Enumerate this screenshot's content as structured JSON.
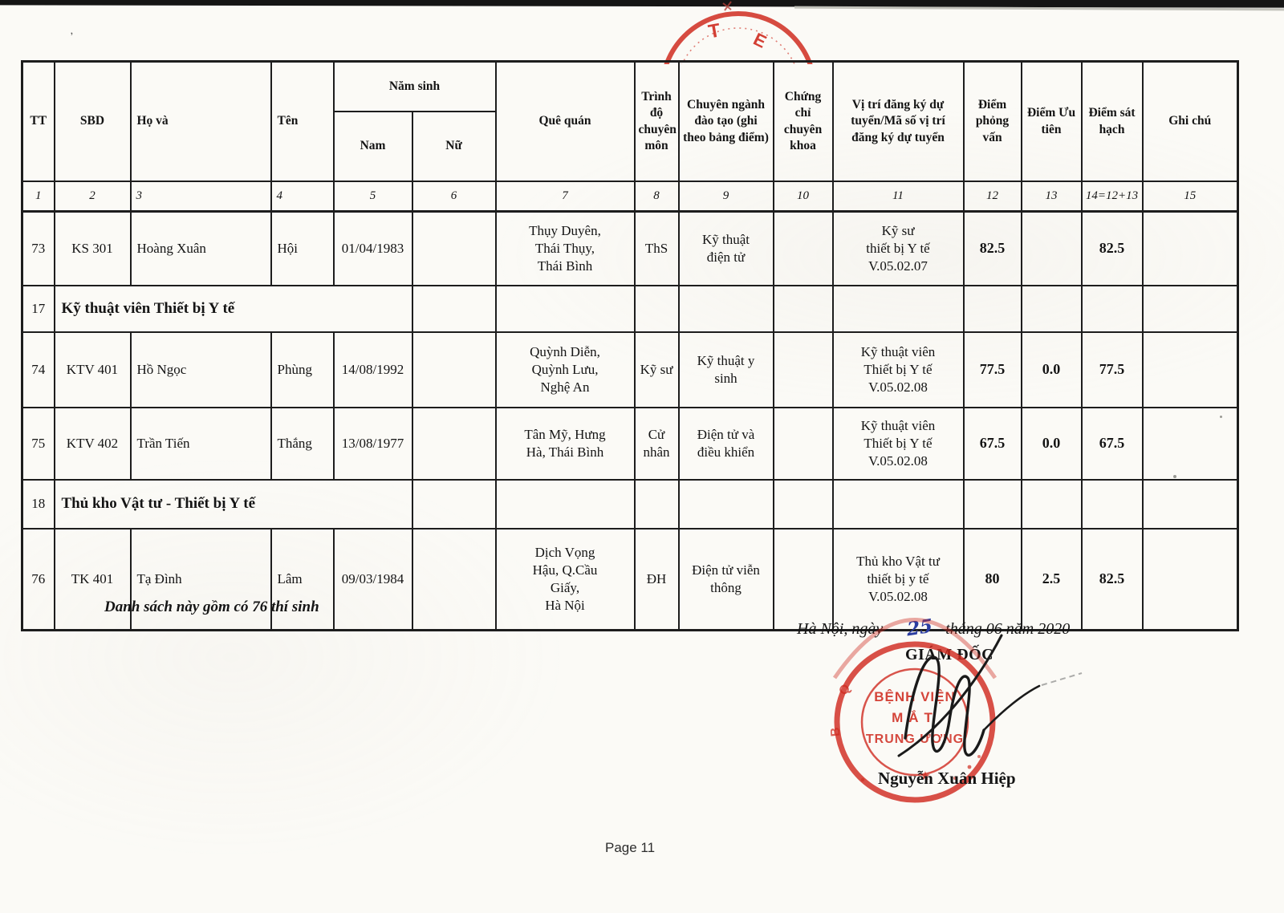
{
  "colors": {
    "stamp_red": "#cf2b20",
    "ink_blue": "#2b3da0",
    "paper": "#fbfaf6",
    "line": "#1d1d1d"
  },
  "table": {
    "headers": {
      "tt": "TT",
      "sbd": "SBD",
      "ho_va": "Họ và",
      "ten": "Tên",
      "nam_sinh": "Năm sinh",
      "nam": "Nam",
      "nu": "Nữ",
      "que_quan": "Quê quán",
      "trinh_do": "Trình độ chuyên môn",
      "chuyen_nganh": "Chuyên ngành đào tạo (ghi theo bảng điểm)",
      "chung_chi": "Chứng chỉ chuyên khoa",
      "vi_tri": "Vị trí đăng ký dự tuyển/Mã số vị trí đăng ký dự tuyển",
      "diem_phong_van": "Điểm phỏng vấn",
      "diem_uu_tien": "Điểm Ưu tiên",
      "diem_sat_hach": "Điểm sát hạch",
      "ghi_chu": "Ghi chú"
    },
    "column_numbers": [
      "1",
      "2",
      "3",
      "4",
      "5",
      "6",
      "7",
      "8",
      "9",
      "10",
      "11",
      "12",
      "13",
      "14=12+13",
      "15"
    ],
    "rows": [
      {
        "type": "candidate",
        "tt": "73",
        "sbd": "KS 301",
        "ho_va": "Hoàng Xuân",
        "ten": "Hội",
        "nam": "01/04/1983",
        "nu": "",
        "que_quan": "Thụy Duyên,\nThái Thụy,\nThái Bình",
        "trinh_do": "ThS",
        "chuyen_nganh": "Kỹ thuật\nđiện tử",
        "chung_chi": "",
        "vi_tri": "Kỹ sư\nthiết bị Y tế\nV.05.02.07",
        "diem_phong_van": "82.5",
        "diem_uu_tien": "",
        "diem_sat_hach": "82.5",
        "ghi_chu": ""
      },
      {
        "type": "section",
        "tt": "17",
        "title": "Kỹ thuật viên Thiết bị Y tế"
      },
      {
        "type": "candidate",
        "tt": "74",
        "sbd": "KTV 401",
        "ho_va": "Hồ Ngọc",
        "ten": "Phùng",
        "nam": "14/08/1992",
        "nu": "",
        "que_quan": "Quỳnh Diễn,\nQuỳnh Lưu,\nNghệ An",
        "trinh_do": "Kỹ sư",
        "chuyen_nganh": "Kỹ thuật y\nsinh",
        "chung_chi": "",
        "vi_tri": "Kỹ thuật viên\nThiết bị Y tế\nV.05.02.08",
        "diem_phong_van": "77.5",
        "diem_uu_tien": "0.0",
        "diem_sat_hach": "77.5",
        "ghi_chu": ""
      },
      {
        "type": "candidate",
        "tt": "75",
        "sbd": "KTV 402",
        "ho_va": "Trần Tiến",
        "ten": "Thắng",
        "nam": "13/08/1977",
        "nu": "",
        "que_quan": "Tân Mỹ, Hưng\nHà, Thái Bình",
        "trinh_do": "Cử\nnhân",
        "chuyen_nganh": "Điện tử và\nđiều khiển",
        "chung_chi": "",
        "vi_tri": "Kỹ thuật viên\nThiết bị Y tế\nV.05.02.08",
        "diem_phong_van": "67.5",
        "diem_uu_tien": "0.0",
        "diem_sat_hach": "67.5",
        "ghi_chu": ""
      },
      {
        "type": "section",
        "tt": "18",
        "title": "Thủ kho Vật tư - Thiết bị Y tế"
      },
      {
        "type": "candidate",
        "tt": "76",
        "sbd": "TK 401",
        "ho_va": "Tạ Đình",
        "ten": "Lâm",
        "nam": "09/03/1984",
        "nu": "",
        "que_quan": "Dịch Vọng\nHậu, Q.Cầu\nGiấy,\nHà Nội",
        "trinh_do": "ĐH",
        "chuyen_nganh": "Điện tử viễn\nthông",
        "chung_chi": "",
        "vi_tri": "Thủ kho Vật tư\nthiết bị y tế\nV.05.02.08",
        "diem_phong_van": "80",
        "diem_uu_tien": "2.5",
        "diem_sat_hach": "82.5",
        "ghi_chu": ""
      }
    ]
  },
  "footer": {
    "summary": "Danh sách này gồm có 76 thí sinh",
    "date_prefix": "Hà Nội, ngày",
    "date_handwritten": "25",
    "date_suffix": "tháng 06 năm 2020",
    "director_title": "GIÁM ĐỐC",
    "signer_name": "Nguyễn Xuân Hiệp",
    "stamp": {
      "line1": "BỆNH VIỆN",
      "line2": "MẮT",
      "line3": "TRUNG ƯƠNG",
      "star": "★",
      "ring_mark_1": "Q",
      "ring_mark_2": "B"
    },
    "top_stamp": {
      "letter_1": "T",
      "letter_2": "E"
    }
  },
  "page": {
    "page_number_label": "Page 11"
  }
}
